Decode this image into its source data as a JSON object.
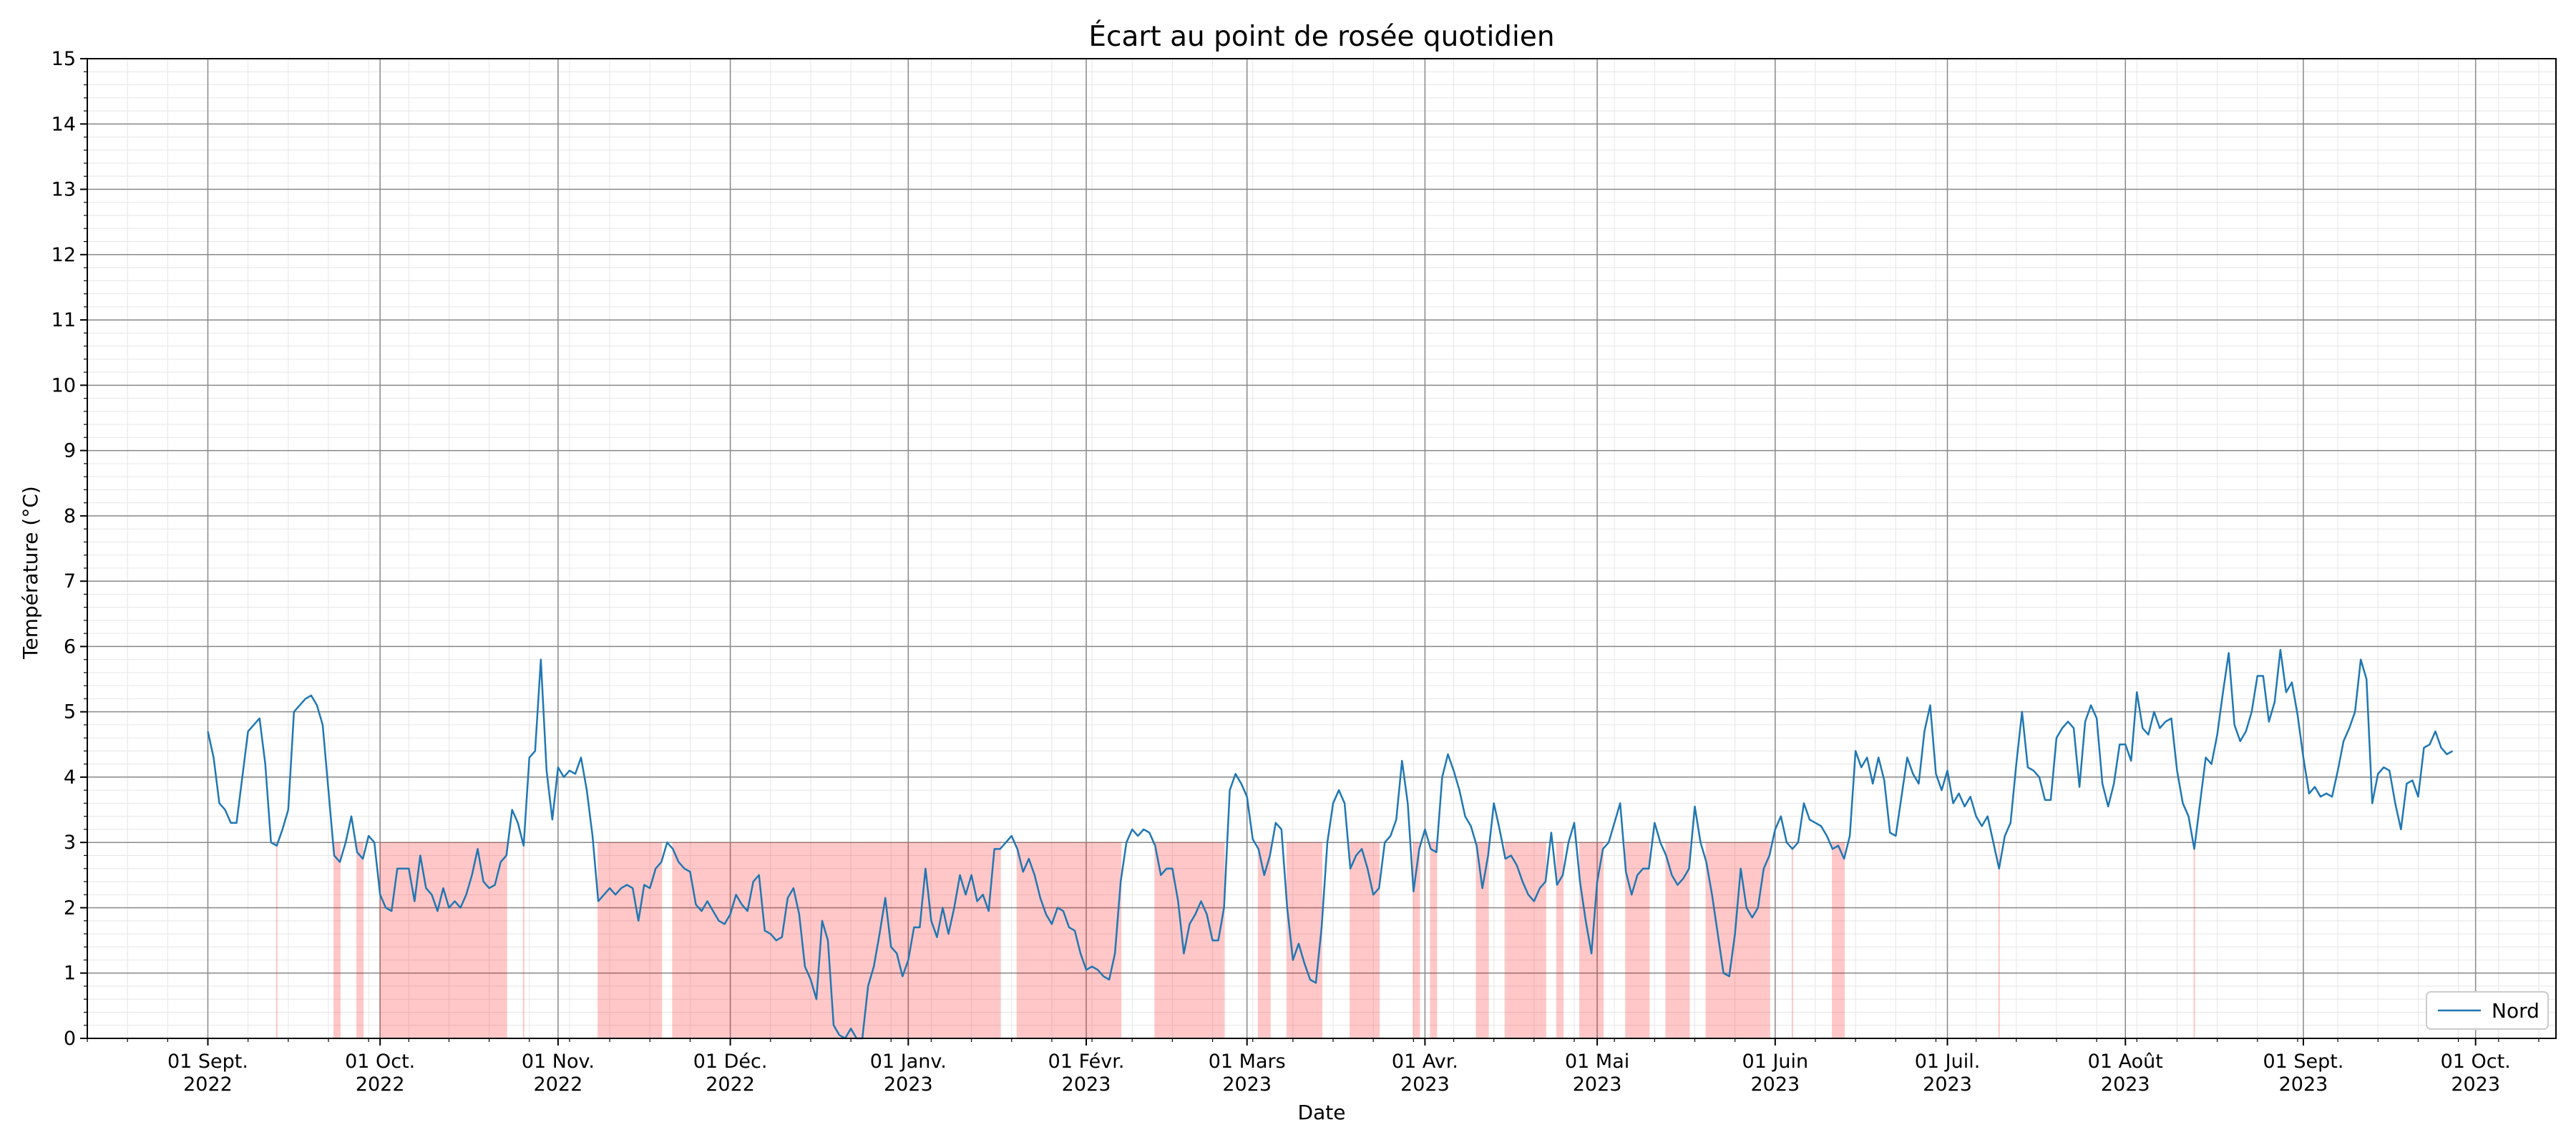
{
  "chart_data": {
    "type": "line",
    "title": "Écart au point de rosée quotidien",
    "xlabel": "Date",
    "ylabel": "Température (°C)",
    "ylim": [
      0,
      15
    ],
    "yticks": [
      0,
      1,
      2,
      3,
      4,
      5,
      6,
      7,
      8,
      9,
      10,
      11,
      12,
      13,
      14,
      15
    ],
    "xlim": [
      "2022-08-11",
      "2023-10-15"
    ],
    "grid": true,
    "legend_position": "bottom-right",
    "xticks": [
      {
        "date": "2022-09-01",
        "line1": "01 Sept.",
        "line2": "2022"
      },
      {
        "date": "2022-10-01",
        "line1": "01 Oct.",
        "line2": "2022"
      },
      {
        "date": "2022-11-01",
        "line1": "01 Nov.",
        "line2": "2022"
      },
      {
        "date": "2022-12-01",
        "line1": "01 Déc.",
        "line2": "2022"
      },
      {
        "date": "2023-01-01",
        "line1": "01 Janv.",
        "line2": "2023"
      },
      {
        "date": "2023-02-01",
        "line1": "01 Févr.",
        "line2": "2023"
      },
      {
        "date": "2023-03-01",
        "line1": "01 Mars",
        "line2": "2023"
      },
      {
        "date": "2023-04-01",
        "line1": "01 Avr.",
        "line2": "2023"
      },
      {
        "date": "2023-05-01",
        "line1": "01 Mai",
        "line2": "2023"
      },
      {
        "date": "2023-06-01",
        "line1": "01 Juin",
        "line2": "2023"
      },
      {
        "date": "2023-07-01",
        "line1": "01 Juil.",
        "line2": "2023"
      },
      {
        "date": "2023-08-01",
        "line1": "01 Août",
        "line2": "2023"
      },
      {
        "date": "2023-09-01",
        "line1": "01 Sept.",
        "line2": "2023"
      },
      {
        "date": "2023-10-01",
        "line1": "01 Oct.",
        "line2": "2023"
      }
    ],
    "threshold": 3,
    "threshold_color": "#ff0000",
    "series_color": "#1f77b4",
    "series": [
      {
        "name": "Nord",
        "x_start": "2022-09-01",
        "step_days": 1,
        "values": [
          4.7,
          4.3,
          3.6,
          3.5,
          3.3,
          3.3,
          4.0,
          4.7,
          4.8,
          4.9,
          4.2,
          3.0,
          2.95,
          3.2,
          3.5,
          5.0,
          5.1,
          5.2,
          5.25,
          5.1,
          4.8,
          3.8,
          2.8,
          2.7,
          3.0,
          3.4,
          2.85,
          2.75,
          3.1,
          3.0,
          2.2,
          2.0,
          1.95,
          2.6,
          2.6,
          2.6,
          2.1,
          2.8,
          2.3,
          2.2,
          1.95,
          2.3,
          2.0,
          2.1,
          2.0,
          2.2,
          2.5,
          2.9,
          2.4,
          2.3,
          2.35,
          2.7,
          2.8,
          3.5,
          3.3,
          2.95,
          4.3,
          4.4,
          5.8,
          4.1,
          3.35,
          4.15,
          4.0,
          4.1,
          4.05,
          4.3,
          3.8,
          3.1,
          2.1,
          2.2,
          2.3,
          2.2,
          2.3,
          2.35,
          2.3,
          1.8,
          2.35,
          2.3,
          2.6,
          2.7,
          3.0,
          2.9,
          2.7,
          2.6,
          2.55,
          2.05,
          1.95,
          2.1,
          1.95,
          1.8,
          1.75,
          1.9,
          2.2,
          2.05,
          1.95,
          2.4,
          2.5,
          1.65,
          1.6,
          1.5,
          1.55,
          2.15,
          2.3,
          1.9,
          1.1,
          0.9,
          0.6,
          1.8,
          1.5,
          0.2,
          0.05,
          0.0,
          0.15,
          0.0,
          0.0,
          0.8,
          1.1,
          1.6,
          2.15,
          1.4,
          1.3,
          0.95,
          1.2,
          1.7,
          1.7,
          2.6,
          1.8,
          1.55,
          2.0,
          1.6,
          2.0,
          2.5,
          2.2,
          2.5,
          2.1,
          2.2,
          1.95,
          2.9,
          2.9,
          3.0,
          3.1,
          2.9,
          2.55,
          2.75,
          2.5,
          2.15,
          1.9,
          1.75,
          2.0,
          1.95,
          1.7,
          1.65,
          1.3,
          1.05,
          1.1,
          1.05,
          0.95,
          0.9,
          1.3,
          2.4,
          3.0,
          3.2,
          3.1,
          3.2,
          3.15,
          2.95,
          2.5,
          2.6,
          2.6,
          2.1,
          1.3,
          1.75,
          1.9,
          2.1,
          1.9,
          1.5,
          1.5,
          2.0,
          3.8,
          4.05,
          3.9,
          3.7,
          3.05,
          2.9,
          2.5,
          2.8,
          3.3,
          3.2,
          2.0,
          1.2,
          1.45,
          1.15,
          0.9,
          0.85,
          1.7,
          3.0,
          3.6,
          3.8,
          3.6,
          2.6,
          2.8,
          2.9,
          2.6,
          2.2,
          2.3,
          3.0,
          3.1,
          3.35,
          4.25,
          3.6,
          2.25,
          2.9,
          3.2,
          2.9,
          2.85,
          4.0,
          4.35,
          4.1,
          3.8,
          3.4,
          3.25,
          2.95,
          2.3,
          2.8,
          3.6,
          3.2,
          2.75,
          2.8,
          2.65,
          2.4,
          2.2,
          2.1,
          2.3,
          2.4,
          3.15,
          2.35,
          2.5,
          3.0,
          3.3,
          2.4,
          1.8,
          1.3,
          2.4,
          2.9,
          3.0,
          3.3,
          3.6,
          2.55,
          2.2,
          2.5,
          2.6,
          2.6,
          3.3,
          3.0,
          2.8,
          2.5,
          2.35,
          2.45,
          2.6,
          3.55,
          3.0,
          2.7,
          2.2,
          1.6,
          1.0,
          0.95,
          1.6,
          2.6,
          2.0,
          1.85,
          2.0,
          2.6,
          2.8,
          3.2,
          3.4,
          3.0,
          2.9,
          3.0,
          3.6,
          3.35,
          3.3,
          3.25,
          3.1,
          2.9,
          2.95,
          2.75,
          3.1,
          4.4,
          4.15,
          4.3,
          3.9,
          4.3,
          3.95,
          3.15,
          3.1,
          3.7,
          4.3,
          4.05,
          3.9,
          4.7,
          5.1,
          4.05,
          3.8,
          4.1,
          3.6,
          3.75,
          3.55,
          3.7,
          3.4,
          3.25,
          3.4,
          3.0,
          2.6,
          3.1,
          3.3,
          4.2,
          5.0,
          4.15,
          4.1,
          4.0,
          3.65,
          3.65,
          4.6,
          4.75,
          4.85,
          4.75,
          3.85,
          4.85,
          5.1,
          4.9,
          3.9,
          3.55,
          3.9,
          4.5,
          4.5,
          4.25,
          5.3,
          4.75,
          4.65,
          5.0,
          4.75,
          4.85,
          4.9,
          4.1,
          3.6,
          3.4,
          2.9,
          3.6,
          4.3,
          4.2,
          4.65,
          5.3,
          5.9,
          4.8,
          4.55,
          4.7,
          5.0,
          5.55,
          5.55,
          4.85,
          5.15,
          5.95,
          5.3,
          5.45,
          4.95,
          4.3,
          3.75,
          3.85,
          3.7,
          3.75,
          3.7,
          4.1,
          4.55,
          4.75,
          5.0,
          5.8,
          5.5,
          3.6,
          4.05,
          4.15,
          4.1,
          3.6,
          3.2,
          3.9,
          3.95,
          3.7,
          4.45,
          4.5,
          4.7,
          4.45,
          4.35,
          4.4
        ]
      }
    ]
  }
}
